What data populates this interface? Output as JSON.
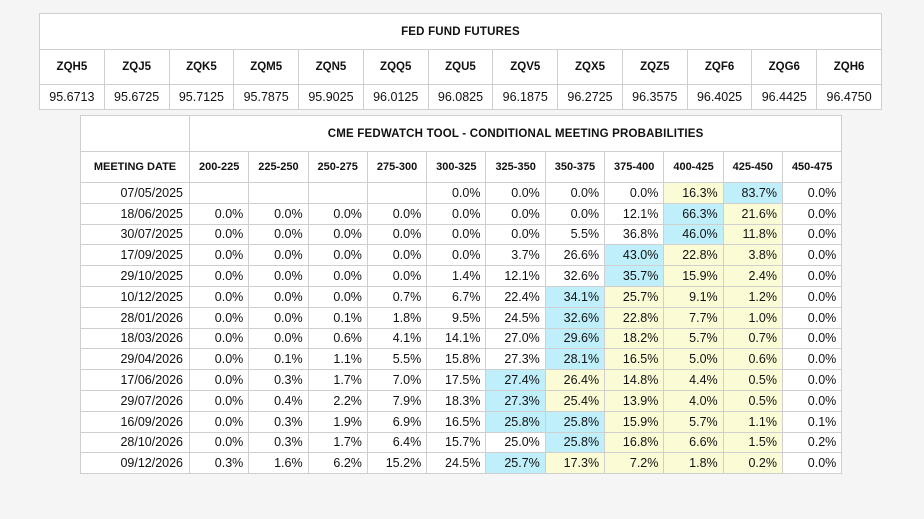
{
  "futures": {
    "title": "FED FUND FUTURES",
    "contracts": [
      {
        "code": "ZQH5",
        "price": "95.6713"
      },
      {
        "code": "ZQJ5",
        "price": "95.6725"
      },
      {
        "code": "ZQK5",
        "price": "95.7125"
      },
      {
        "code": "ZQM5",
        "price": "95.7875"
      },
      {
        "code": "ZQN5",
        "price": "95.9025"
      },
      {
        "code": "ZQQ5",
        "price": "96.0125"
      },
      {
        "code": "ZQU5",
        "price": "96.0825"
      },
      {
        "code": "ZQV5",
        "price": "96.1875"
      },
      {
        "code": "ZQX5",
        "price": "96.2725"
      },
      {
        "code": "ZQZ5",
        "price": "96.3575"
      },
      {
        "code": "ZQF6",
        "price": "96.4025"
      },
      {
        "code": "ZQG6",
        "price": "96.4425"
      },
      {
        "code": "ZQH6",
        "price": "96.4750"
      }
    ]
  },
  "colors": {
    "highlight_max": "#bfeffb",
    "highlight_high": "#fbfbd6"
  },
  "chart_data": {
    "type": "table",
    "title": "CME FEDWATCH TOOL - CONDITIONAL MEETING PROBABILITIES",
    "date_header": "MEETING DATE",
    "ranges": [
      "200-225",
      "225-250",
      "250-275",
      "275-300",
      "300-325",
      "325-350",
      "350-375",
      "375-400",
      "400-425",
      "425-450",
      "450-475"
    ],
    "rows": [
      {
        "date": "07/05/2025",
        "values": [
          "",
          "",
          "",
          "",
          "0.0%",
          "0.0%",
          "0.0%",
          "0.0%",
          "16.3%",
          "83.7%",
          "0.0%"
        ],
        "hl": [
          "",
          "",
          "",
          "",
          "",
          "",
          "",
          "",
          "y",
          "b",
          ""
        ]
      },
      {
        "date": "18/06/2025",
        "values": [
          "0.0%",
          "0.0%",
          "0.0%",
          "0.0%",
          "0.0%",
          "0.0%",
          "0.0%",
          "12.1%",
          "66.3%",
          "21.6%",
          "0.0%"
        ],
        "hl": [
          "",
          "",
          "",
          "",
          "",
          "",
          "",
          "",
          "b",
          "y",
          ""
        ]
      },
      {
        "date": "30/07/2025",
        "values": [
          "0.0%",
          "0.0%",
          "0.0%",
          "0.0%",
          "0.0%",
          "0.0%",
          "5.5%",
          "36.8%",
          "46.0%",
          "11.8%",
          "0.0%"
        ],
        "hl": [
          "",
          "",
          "",
          "",
          "",
          "",
          "",
          "",
          "b",
          "y",
          ""
        ]
      },
      {
        "date": "17/09/2025",
        "values": [
          "0.0%",
          "0.0%",
          "0.0%",
          "0.0%",
          "0.0%",
          "3.7%",
          "26.6%",
          "43.0%",
          "22.8%",
          "3.8%",
          "0.0%"
        ],
        "hl": [
          "",
          "",
          "",
          "",
          "",
          "",
          "",
          "b",
          "y",
          "y",
          ""
        ]
      },
      {
        "date": "29/10/2025",
        "values": [
          "0.0%",
          "0.0%",
          "0.0%",
          "0.0%",
          "1.4%",
          "12.1%",
          "32.6%",
          "35.7%",
          "15.9%",
          "2.4%",
          "0.0%"
        ],
        "hl": [
          "",
          "",
          "",
          "",
          "",
          "",
          "",
          "b",
          "y",
          "y",
          ""
        ]
      },
      {
        "date": "10/12/2025",
        "values": [
          "0.0%",
          "0.0%",
          "0.0%",
          "0.7%",
          "6.7%",
          "22.4%",
          "34.1%",
          "25.7%",
          "9.1%",
          "1.2%",
          "0.0%"
        ],
        "hl": [
          "",
          "",
          "",
          "",
          "",
          "",
          "b",
          "y",
          "y",
          "y",
          ""
        ]
      },
      {
        "date": "28/01/2026",
        "values": [
          "0.0%",
          "0.0%",
          "0.1%",
          "1.8%",
          "9.5%",
          "24.5%",
          "32.6%",
          "22.8%",
          "7.7%",
          "1.0%",
          "0.0%"
        ],
        "hl": [
          "",
          "",
          "",
          "",
          "",
          "",
          "b",
          "y",
          "y",
          "y",
          ""
        ]
      },
      {
        "date": "18/03/2026",
        "values": [
          "0.0%",
          "0.0%",
          "0.6%",
          "4.1%",
          "14.1%",
          "27.0%",
          "29.6%",
          "18.2%",
          "5.7%",
          "0.7%",
          "0.0%"
        ],
        "hl": [
          "",
          "",
          "",
          "",
          "",
          "",
          "b",
          "y",
          "y",
          "y",
          ""
        ]
      },
      {
        "date": "29/04/2026",
        "values": [
          "0.0%",
          "0.1%",
          "1.1%",
          "5.5%",
          "15.8%",
          "27.3%",
          "28.1%",
          "16.5%",
          "5.0%",
          "0.6%",
          "0.0%"
        ],
        "hl": [
          "",
          "",
          "",
          "",
          "",
          "",
          "b",
          "y",
          "y",
          "y",
          ""
        ]
      },
      {
        "date": "17/06/2026",
        "values": [
          "0.0%",
          "0.3%",
          "1.7%",
          "7.0%",
          "17.5%",
          "27.4%",
          "26.4%",
          "14.8%",
          "4.4%",
          "0.5%",
          "0.0%"
        ],
        "hl": [
          "",
          "",
          "",
          "",
          "",
          "b",
          "y",
          "y",
          "y",
          "y",
          ""
        ]
      },
      {
        "date": "29/07/2026",
        "values": [
          "0.0%",
          "0.4%",
          "2.2%",
          "7.9%",
          "18.3%",
          "27.3%",
          "25.4%",
          "13.9%",
          "4.0%",
          "0.5%",
          "0.0%"
        ],
        "hl": [
          "",
          "",
          "",
          "",
          "",
          "b",
          "y",
          "y",
          "y",
          "y",
          ""
        ]
      },
      {
        "date": "16/09/2026",
        "values": [
          "0.0%",
          "0.3%",
          "1.9%",
          "6.9%",
          "16.5%",
          "25.8%",
          "25.8%",
          "15.9%",
          "5.7%",
          "1.1%",
          "0.1%"
        ],
        "hl": [
          "",
          "",
          "",
          "",
          "",
          "b",
          "b",
          "y",
          "y",
          "y",
          ""
        ]
      },
      {
        "date": "28/10/2026",
        "values": [
          "0.0%",
          "0.3%",
          "1.7%",
          "6.4%",
          "15.7%",
          "25.0%",
          "25.8%",
          "16.8%",
          "6.6%",
          "1.5%",
          "0.2%"
        ],
        "hl": [
          "",
          "",
          "",
          "",
          "",
          "",
          "b",
          "y",
          "y",
          "y",
          ""
        ]
      },
      {
        "date": "09/12/2026",
        "values": [
          "0.3%",
          "1.6%",
          "6.2%",
          "15.2%",
          "24.5%",
          "25.7%",
          "17.3%",
          "7.2%",
          "1.8%",
          "0.2%",
          "0.0%"
        ],
        "hl": [
          "",
          "",
          "",
          "",
          "",
          "b",
          "y",
          "y",
          "y",
          "y",
          ""
        ]
      }
    ]
  }
}
